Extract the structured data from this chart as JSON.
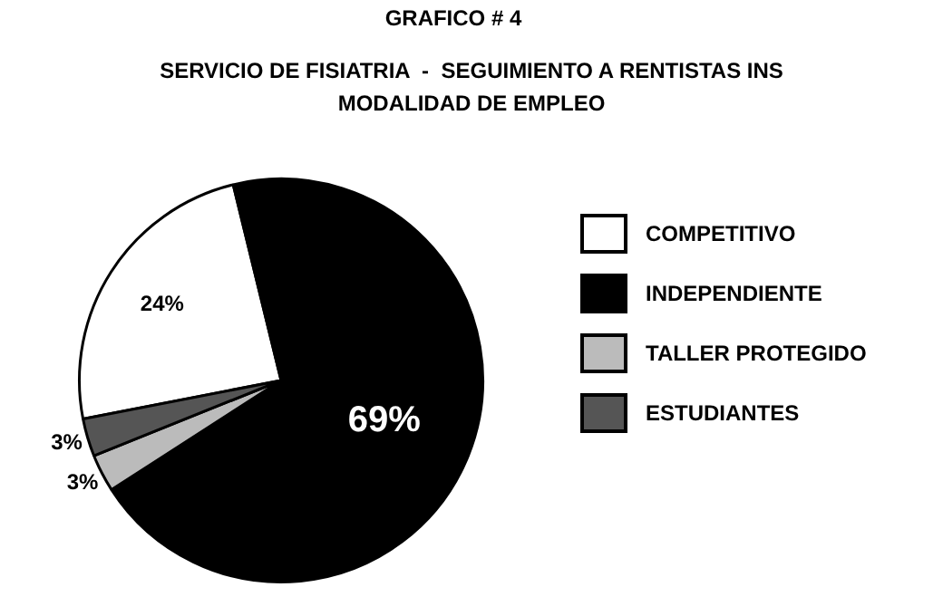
{
  "chart_data": {
    "type": "pie",
    "title": "GRAFICO # 4",
    "subtitle": "SERVICIO DE FISIATRIA  -  SEGUIMIENTO A RENTISTAS INS\nMODALIDAD DE EMPLEO",
    "categories": [
      "COMPETITIVO",
      "INDEPENDIENTE",
      "TALLER PROTEGIDO",
      "ESTUDIANTES"
    ],
    "values": [
      24,
      69,
      3,
      3
    ],
    "value_labels": [
      "24%",
      "69%",
      "3%",
      "3%"
    ],
    "colors": [
      "#ffffff",
      "#000000",
      "#bbbbbb",
      "#555555"
    ],
    "legend": "right"
  }
}
